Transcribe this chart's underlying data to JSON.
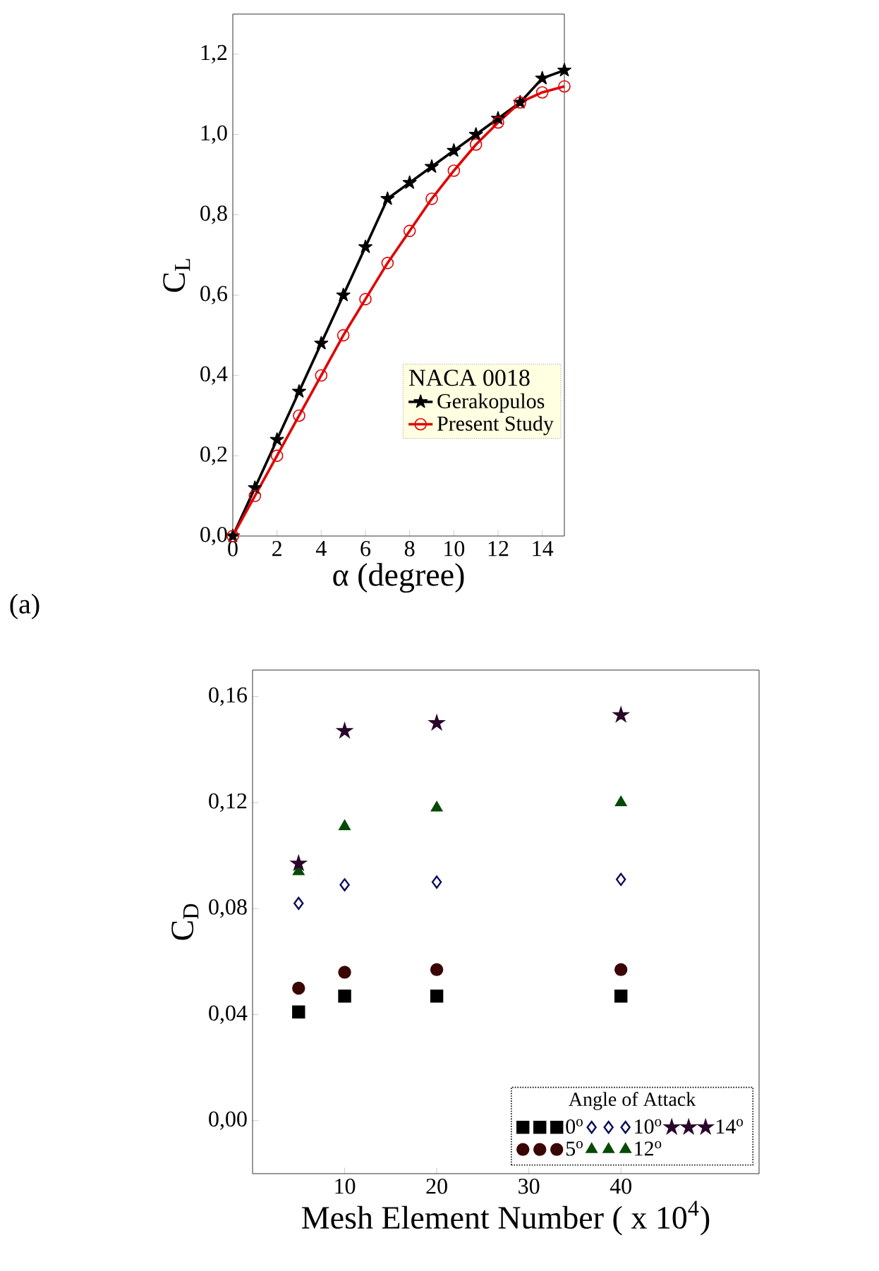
{
  "chart_data": [
    {
      "type": "line",
      "xlabel": "α (degree)",
      "ylabel": "C$_{L}$",
      "legend_title": "NACA 0018",
      "legend": "bottom right",
      "x": [
        0,
        1,
        2,
        3,
        4,
        5,
        6,
        7,
        8,
        9,
        10,
        11,
        12,
        13,
        14,
        15
      ],
      "series": [
        {
          "name": "Gerakopulos",
          "color": "#000000",
          "marker": "star",
          "values": [
            0,
            0.12,
            0.24,
            0.36,
            0.48,
            0.6,
            0.72,
            0.84,
            0.88,
            0.92,
            0.96,
            1.0,
            1.04,
            1.08,
            1.14,
            1.16
          ]
        },
        {
          "name": "Present Study",
          "color": "#e00000",
          "marker": "circle",
          "values": [
            0,
            0.1,
            0.2,
            0.3,
            0.4,
            0.5,
            0.59,
            0.68,
            0.76,
            0.84,
            0.91,
            0.975,
            1.03,
            1.08,
            1.105,
            1.12
          ]
        }
      ],
      "xlim": [
        0,
        15
      ],
      "ylim": [
        0,
        1.3
      ],
      "xticks": [
        0,
        2,
        4,
        6,
        8,
        10,
        12,
        14
      ],
      "yticks": [
        {
          "value": 0,
          "label": "0,0"
        },
        {
          "value": 0.2,
          "label": "0,2"
        },
        {
          "value": 0.4,
          "label": "0,4"
        },
        {
          "value": 0.6,
          "label": "0,6"
        },
        {
          "value": 0.8,
          "label": "0,8"
        },
        {
          "value": 1.0,
          "label": "1,0"
        },
        {
          "value": 1.2,
          "label": "1,2"
        }
      ],
      "annotations": [
        "(a)"
      ]
    },
    {
      "type": "scatter",
      "xlabel": "Mesh Element Number ( x 10$^{4}$)",
      "ylabel": "C$_{D}$",
      "legend_title": "Angle of Attack",
      "legend": "bottom right",
      "x": [
        5,
        10,
        20,
        40
      ],
      "series": [
        {
          "name": "0$^{o}$",
          "color": "#000000",
          "marker": "square",
          "values": [
            0.041,
            0.047,
            0.047,
            0.047
          ]
        },
        {
          "name": "5$^{o}$",
          "color": "#3a0505",
          "marker": "circle",
          "values": [
            0.05,
            0.056,
            0.057,
            0.057
          ]
        },
        {
          "name": "10$^{o}$",
          "color": "#0a0a5a",
          "marker": "diamond",
          "values": [
            0.082,
            0.089,
            0.09,
            0.091
          ]
        },
        {
          "name": "12$^{o}$",
          "color": "#064a06",
          "marker": "triangle",
          "values": [
            0.094,
            0.111,
            0.118,
            0.12
          ]
        },
        {
          "name": "14$^{o}$",
          "color": "#2a062a",
          "marker": "star",
          "values": [
            0.097,
            0.147,
            0.15,
            0.153
          ]
        }
      ],
      "xlim": [
        0,
        55
      ],
      "ylim": [
        -0.02,
        0.17
      ],
      "xticks": [
        10,
        20,
        30,
        40
      ],
      "yticks": [
        {
          "value": 0,
          "label": "0,00"
        },
        {
          "value": 0.04,
          "label": "0,04"
        },
        {
          "value": 0.08,
          "label": "0,08"
        },
        {
          "value": 0.12,
          "label": "0,12"
        },
        {
          "value": 0.16,
          "label": "0,16"
        }
      ]
    }
  ]
}
